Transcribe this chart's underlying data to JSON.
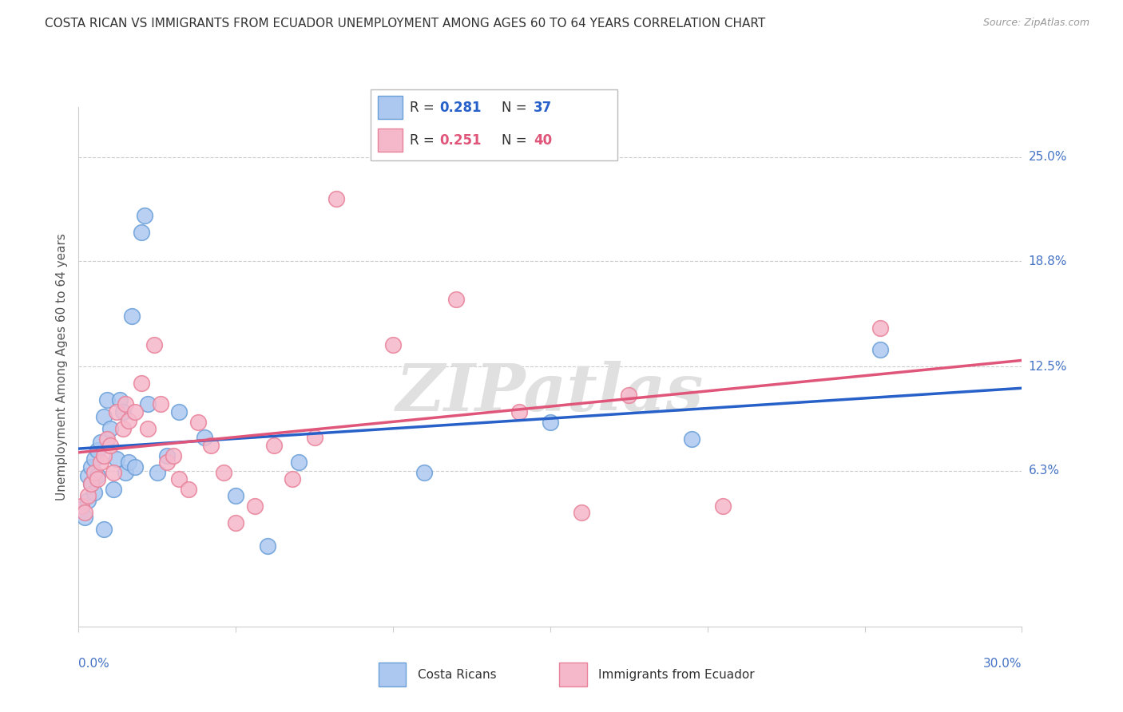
{
  "title": "COSTA RICAN VS IMMIGRANTS FROM ECUADOR UNEMPLOYMENT AMONG AGES 60 TO 64 YEARS CORRELATION CHART",
  "source": "Source: ZipAtlas.com",
  "ylabel": "Unemployment Among Ages 60 to 64 years",
  "xlim": [
    0.0,
    0.3
  ],
  "ylim": [
    -0.03,
    0.28
  ],
  "yticks": [
    0.063,
    0.125,
    0.188,
    0.25
  ],
  "ytick_labels": [
    "6.3%",
    "12.5%",
    "18.8%",
    "25.0%"
  ],
  "blue_label": "Costa Ricans",
  "pink_label": "Immigrants from Ecuador",
  "blue_color": "#adc8f0",
  "pink_color": "#f5b8cb",
  "blue_edge_color": "#6a9fd8",
  "pink_edge_color": "#e8829a",
  "blue_line_color": "#2660c8",
  "pink_line_color": "#e0567a",
  "blue_x": [
    0.001,
    0.002,
    0.003,
    0.003,
    0.004,
    0.004,
    0.005,
    0.005,
    0.006,
    0.006,
    0.007,
    0.008,
    0.008,
    0.009,
    0.01,
    0.011,
    0.012,
    0.013,
    0.014,
    0.015,
    0.016,
    0.017,
    0.018,
    0.02,
    0.021,
    0.022,
    0.025,
    0.028,
    0.032,
    0.04,
    0.05,
    0.06,
    0.07,
    0.11,
    0.15,
    0.195,
    0.255
  ],
  "blue_y": [
    0.04,
    0.035,
    0.045,
    0.06,
    0.055,
    0.065,
    0.05,
    0.07,
    0.06,
    0.075,
    0.08,
    0.028,
    0.095,
    0.105,
    0.088,
    0.052,
    0.07,
    0.105,
    0.098,
    0.062,
    0.068,
    0.155,
    0.065,
    0.205,
    0.215,
    0.103,
    0.062,
    0.072,
    0.098,
    0.083,
    0.048,
    0.018,
    0.068,
    0.062,
    0.092,
    0.082,
    0.135
  ],
  "pink_x": [
    0.001,
    0.002,
    0.003,
    0.004,
    0.005,
    0.006,
    0.007,
    0.008,
    0.009,
    0.01,
    0.011,
    0.012,
    0.014,
    0.015,
    0.016,
    0.018,
    0.02,
    0.022,
    0.024,
    0.026,
    0.028,
    0.03,
    0.032,
    0.035,
    0.038,
    0.042,
    0.046,
    0.05,
    0.056,
    0.062,
    0.068,
    0.075,
    0.082,
    0.1,
    0.12,
    0.14,
    0.16,
    0.175,
    0.205,
    0.255
  ],
  "pink_y": [
    0.042,
    0.038,
    0.048,
    0.055,
    0.062,
    0.058,
    0.068,
    0.072,
    0.082,
    0.078,
    0.062,
    0.098,
    0.088,
    0.103,
    0.093,
    0.098,
    0.115,
    0.088,
    0.138,
    0.103,
    0.068,
    0.072,
    0.058,
    0.052,
    0.092,
    0.078,
    0.062,
    0.032,
    0.042,
    0.078,
    0.058,
    0.083,
    0.225,
    0.138,
    0.165,
    0.098,
    0.038,
    0.108,
    0.042,
    0.148
  ],
  "watermark_text": "ZIPatlas",
  "background_color": "#ffffff",
  "grid_color": "#cccccc",
  "title_color": "#333333",
  "source_color": "#999999",
  "axis_label_color": "#555555",
  "tick_label_color": "#4472c4"
}
